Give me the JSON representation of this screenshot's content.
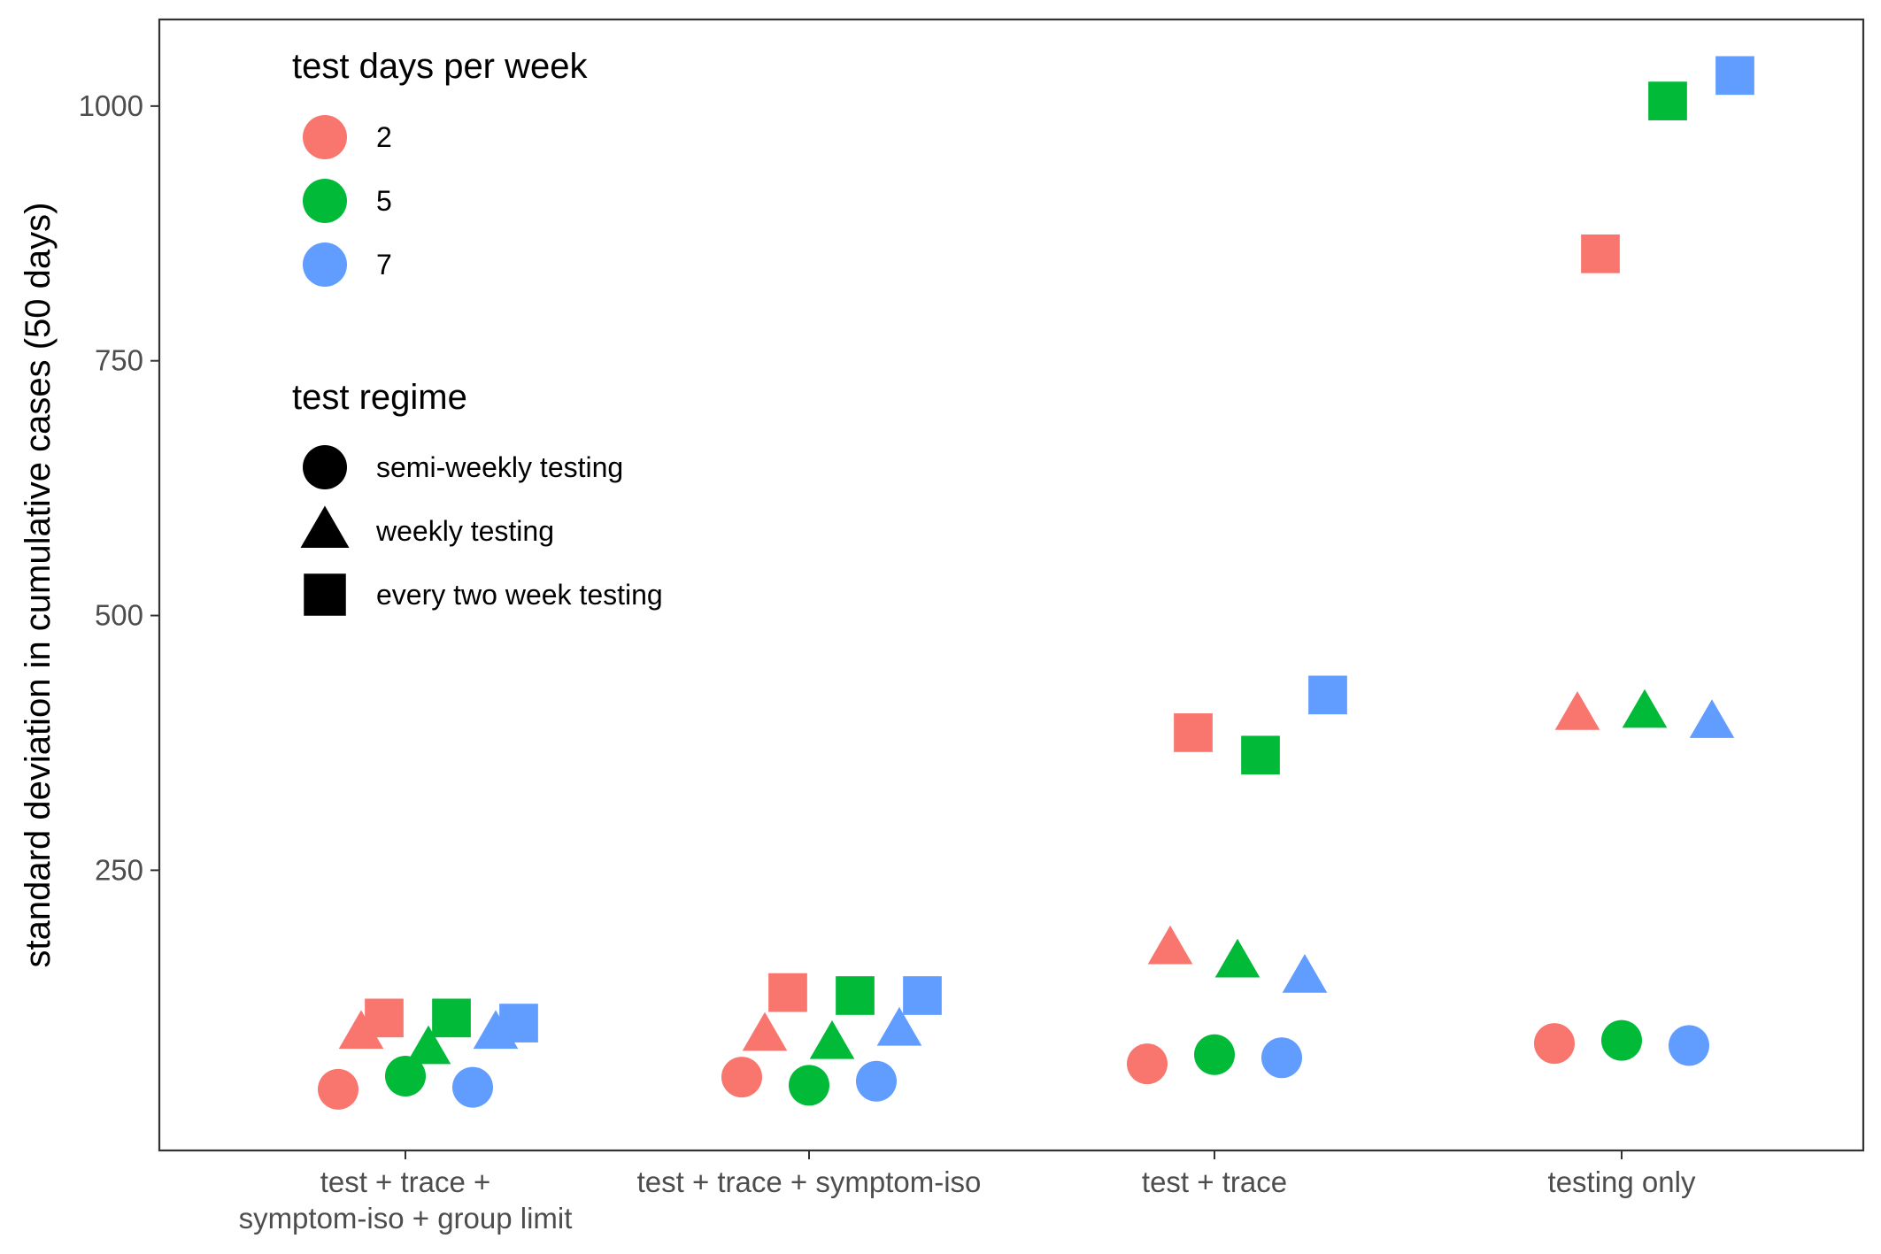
{
  "chart_data": {
    "type": "scatter",
    "ylabel": "standard deviation in cumulative cases (50 days)",
    "xlabel": "",
    "ylim": [
      -25,
      1085
    ],
    "y_ticks": [
      250,
      500,
      750,
      1000
    ],
    "y_tick_labels": [
      "250",
      "500",
      "750",
      "1000"
    ],
    "categories": [
      "test + trace +\nsymptom-iso + group limit",
      "test + trace + symptom-iso",
      "test + trace",
      "testing only"
    ],
    "grid": false,
    "legend_position": "top-left inside",
    "color_legend": {
      "title": "test days per week",
      "entries": [
        {
          "label": "2",
          "color": "#F8766D"
        },
        {
          "label": "5",
          "color": "#00BA38"
        },
        {
          "label": "7",
          "color": "#619CFF"
        }
      ]
    },
    "shape_legend": {
      "title": "test regime",
      "entries": [
        {
          "label": "semi-weekly testing",
          "shape": "circle"
        },
        {
          "label": "weekly testing",
          "shape": "triangle"
        },
        {
          "label": "every two week testing",
          "shape": "square"
        }
      ]
    },
    "points": [
      {
        "category": 0,
        "days": "2",
        "regime": "semi-weekly testing",
        "y": 35
      },
      {
        "category": 0,
        "days": "5",
        "regime": "semi-weekly testing",
        "y": 48
      },
      {
        "category": 0,
        "days": "7",
        "regime": "semi-weekly testing",
        "y": 37
      },
      {
        "category": 0,
        "days": "2",
        "regime": "weekly testing",
        "y": 90
      },
      {
        "category": 0,
        "days": "5",
        "regime": "weekly testing",
        "y": 75
      },
      {
        "category": 0,
        "days": "7",
        "regime": "weekly testing",
        "y": 90
      },
      {
        "category": 0,
        "days": "2",
        "regime": "every two week testing",
        "y": 105
      },
      {
        "category": 0,
        "days": "5",
        "regime": "every two week testing",
        "y": 105
      },
      {
        "category": 0,
        "days": "7",
        "regime": "every two week testing",
        "y": 100
      },
      {
        "category": 1,
        "days": "2",
        "regime": "semi-weekly testing",
        "y": 47
      },
      {
        "category": 1,
        "days": "5",
        "regime": "semi-weekly testing",
        "y": 39
      },
      {
        "category": 1,
        "days": "7",
        "regime": "semi-weekly testing",
        "y": 43
      },
      {
        "category": 1,
        "days": "2",
        "regime": "weekly testing",
        "y": 88
      },
      {
        "category": 1,
        "days": "5",
        "regime": "weekly testing",
        "y": 80
      },
      {
        "category": 1,
        "days": "7",
        "regime": "weekly testing",
        "y": 93
      },
      {
        "category": 1,
        "days": "2",
        "regime": "every two week testing",
        "y": 130
      },
      {
        "category": 1,
        "days": "5",
        "regime": "every two week testing",
        "y": 127
      },
      {
        "category": 1,
        "days": "7",
        "regime": "every two week testing",
        "y": 127
      },
      {
        "category": 2,
        "days": "2",
        "regime": "semi-weekly testing",
        "y": 60
      },
      {
        "category": 2,
        "days": "5",
        "regime": "semi-weekly testing",
        "y": 69
      },
      {
        "category": 2,
        "days": "7",
        "regime": "semi-weekly testing",
        "y": 66
      },
      {
        "category": 2,
        "days": "2",
        "regime": "weekly testing",
        "y": 173
      },
      {
        "category": 2,
        "days": "5",
        "regime": "weekly testing",
        "y": 160
      },
      {
        "category": 2,
        "days": "7",
        "regime": "weekly testing",
        "y": 145
      },
      {
        "category": 2,
        "days": "2",
        "regime": "every two week testing",
        "y": 385
      },
      {
        "category": 2,
        "days": "5",
        "regime": "every two week testing",
        "y": 363
      },
      {
        "category": 2,
        "days": "7",
        "regime": "every two week testing",
        "y": 422
      },
      {
        "category": 3,
        "days": "2",
        "regime": "semi-weekly testing",
        "y": 80
      },
      {
        "category": 3,
        "days": "5",
        "regime": "semi-weekly testing",
        "y": 83
      },
      {
        "category": 3,
        "days": "7",
        "regime": "semi-weekly testing",
        "y": 78
      },
      {
        "category": 3,
        "days": "2",
        "regime": "weekly testing",
        "y": 403
      },
      {
        "category": 3,
        "days": "5",
        "regime": "weekly testing",
        "y": 405
      },
      {
        "category": 3,
        "days": "7",
        "regime": "weekly testing",
        "y": 395
      },
      {
        "category": 3,
        "days": "2",
        "regime": "every two week testing",
        "y": 855
      },
      {
        "category": 3,
        "days": "5",
        "regime": "every two week testing",
        "y": 1005
      },
      {
        "category": 3,
        "days": "7",
        "regime": "every two week testing",
        "y": 1030
      }
    ]
  }
}
